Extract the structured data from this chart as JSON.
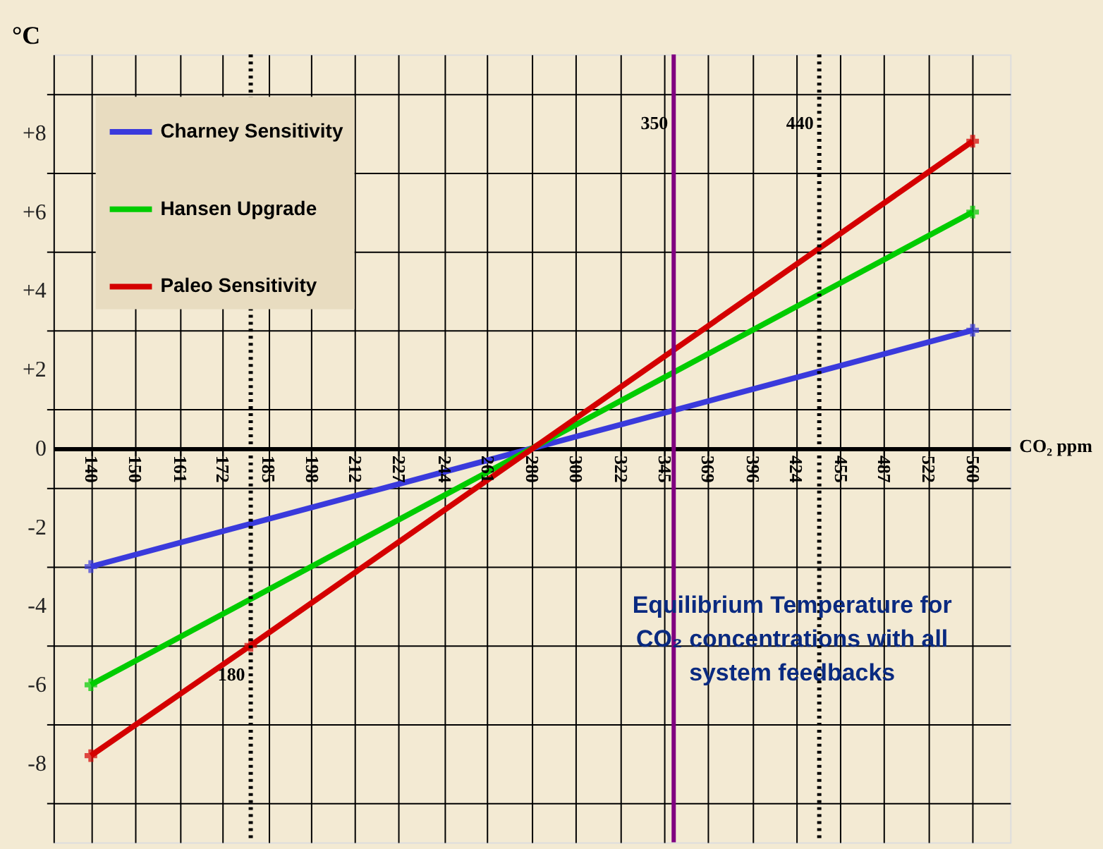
{
  "chart_data": {
    "type": "line",
    "xlabel": "CO₂ ppm",
    "ylabel": "°C",
    "log": "x",
    "xlim": [
      132,
      594
    ],
    "ylim": [
      -10,
      10
    ],
    "xticks": [
      140,
      150,
      161,
      172,
      185,
      198,
      212,
      227,
      244,
      261,
      280,
      300,
      322,
      345,
      369,
      396,
      424,
      455,
      487,
      522,
      560
    ],
    "yticks": [
      {
        "value": -9,
        "label": null
      },
      {
        "value": -8,
        "label": "-8"
      },
      {
        "value": -7,
        "label": null
      },
      {
        "value": -6,
        "label": "-6"
      },
      {
        "value": -5,
        "label": null
      },
      {
        "value": -4,
        "label": "-4"
      },
      {
        "value": -3,
        "label": null
      },
      {
        "value": -2,
        "label": "-2"
      },
      {
        "value": -1,
        "label": null
      },
      {
        "value": 0,
        "label": "0"
      },
      {
        "value": 1,
        "label": null
      },
      {
        "value": 2,
        "label": "+2"
      },
      {
        "value": 3,
        "label": null
      },
      {
        "value": 4,
        "label": "+4"
      },
      {
        "value": 5,
        "label": null
      },
      {
        "value": 6,
        "label": "+6"
      },
      {
        "value": 7,
        "label": null
      },
      {
        "value": 8,
        "label": "+8"
      },
      {
        "value": 9,
        "label": null
      }
    ],
    "grid": true,
    "legend": "top left",
    "marker": "cross",
    "line_style": "solid",
    "series": [
      {
        "name": "Charney Sensitivity",
        "color": "#3a3adc",
        "x": [
          140,
          560
        ],
        "values": [
          -3,
          3
        ]
      },
      {
        "name": "Hansen Upgrade",
        "color": "#00cc00",
        "x": [
          140,
          560
        ],
        "values": [
          -6,
          6
        ]
      },
      {
        "name": "Paleo Sensitivity",
        "color": "#d40000",
        "x": [
          140,
          180,
          560
        ],
        "values": [
          -7.8,
          -5,
          7.8
        ]
      }
    ],
    "ref_lines": [
      {
        "axis": "x",
        "value": 350,
        "label": "350",
        "color": "#800080",
        "line_style": "solid"
      },
      {
        "axis": "x",
        "value": 440,
        "label": "440",
        "color": "#000000",
        "line_style": "dotted"
      },
      {
        "axis": "x",
        "value": 180,
        "label": "180",
        "color": "#000000",
        "line_style": "dotted"
      }
    ],
    "annotations": [
      "Equilibrium Temperature for CO₂ concentrations with  all system feedbacks"
    ]
  }
}
